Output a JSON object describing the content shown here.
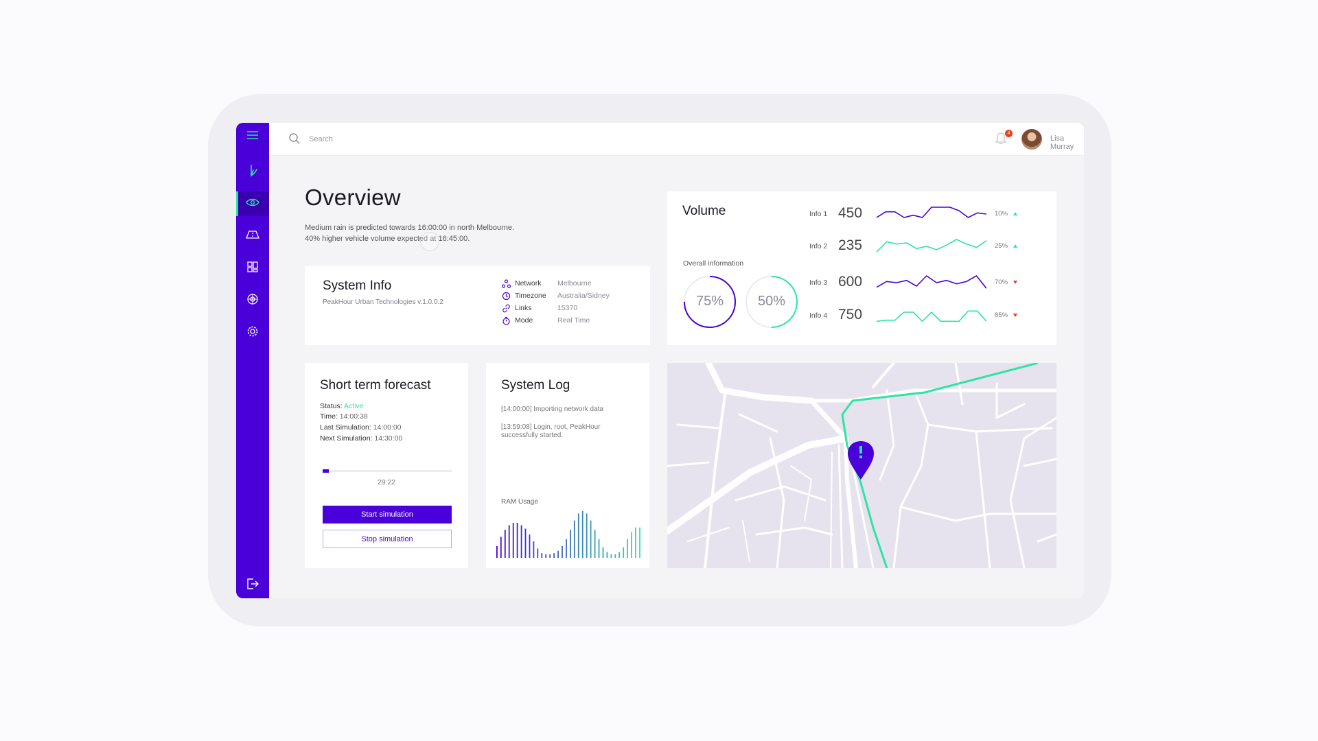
{
  "colors": {
    "brand": "#4a00d9",
    "accent": "#2de4a6",
    "down": "#e8401c",
    "background": "#f4f3f6"
  },
  "sidebar": {
    "items": [
      {
        "name": "menu",
        "icon": "menu-icon"
      },
      {
        "name": "logo",
        "icon": "logo-icon"
      },
      {
        "name": "overview",
        "icon": "eye-icon",
        "active": true
      },
      {
        "name": "roads",
        "icon": "road-icon"
      },
      {
        "name": "dashboard",
        "icon": "grid-icon"
      },
      {
        "name": "analytics",
        "icon": "target-icon"
      },
      {
        "name": "settings",
        "icon": "gear-icon"
      },
      {
        "name": "logout",
        "icon": "logout-icon"
      }
    ]
  },
  "topbar": {
    "search_placeholder": "Search",
    "notifications_count": "4",
    "user_name": "Lisa Murray"
  },
  "overview": {
    "title": "Overview",
    "message_line1": "Medium rain is predicted towards 16:00:00 in north Melbourne.",
    "message_line2": "40% higher vehicle volume expected at 16:45:00."
  },
  "system_info": {
    "title": "System Info",
    "subtitle": "PeakHour Urban Technologies v.1.0.0.2",
    "rows": [
      {
        "label": "Network",
        "value": "Melbourne",
        "icon": "network-icon"
      },
      {
        "label": "Timezone",
        "value": "Australia/Sidney",
        "icon": "clock-icon"
      },
      {
        "label": "Links",
        "value": "15370",
        "icon": "link-icon"
      },
      {
        "label": "Mode",
        "value": "Real Time",
        "icon": "stopwatch-icon"
      }
    ]
  },
  "volume": {
    "title": "Volume",
    "overall_label": "Overall information",
    "donuts": [
      {
        "label": "75%",
        "value": 0.75,
        "color": "#4a00d9"
      },
      {
        "label": "50%",
        "value": 0.5,
        "color": "#2de4a6"
      }
    ],
    "infos": [
      {
        "label": "Info 1",
        "value": "450",
        "pct": "10%",
        "trend": "up",
        "color": "#4a00d9",
        "spark": [
          3,
          8,
          8,
          3,
          5,
          3,
          12,
          12,
          12,
          9,
          3,
          7,
          6
        ]
      },
      {
        "label": "Info 2",
        "value": "235",
        "pct": "25%",
        "trend": "up",
        "color": "#2de4a6",
        "spark": [
          1,
          10,
          8,
          9,
          4,
          6,
          3,
          7,
          12,
          8,
          5,
          11
        ]
      },
      {
        "label": "Info 3",
        "value": "600",
        "pct": "70%",
        "trend": "down",
        "color": "#4a00d9",
        "spark": [
          2,
          7,
          6,
          8,
          3,
          12,
          6,
          8,
          5,
          7,
          12,
          1
        ]
      },
      {
        "label": "Info 4",
        "value": "750",
        "pct": "85%",
        "trend": "down",
        "color": "#2de4a6",
        "spark": [
          1,
          2,
          2,
          9,
          9,
          1,
          9,
          1,
          1,
          1,
          10,
          10,
          1
        ]
      }
    ]
  },
  "forecast": {
    "title": "Short term forecast",
    "status_label": "Status:",
    "status_value": "Active",
    "time_label": "Time:",
    "time_value": "14:00:38",
    "last_label": "Last Simulation:",
    "last_value": "14:00:00",
    "next_label": "Next Simulation:",
    "next_value": "14:30:00",
    "progress": 0.05,
    "progress_time": "29:22",
    "start_label": "Start simulation",
    "stop_label": "Stop simulation"
  },
  "system_log": {
    "title": "System Log",
    "entries": [
      "[14:00:00] Importing network data",
      "[13:59:08] Login, root, PeakHour successfully started."
    ],
    "ram_label": "RAM Usage",
    "ram_values": [
      10,
      18,
      24,
      28,
      30,
      30,
      28,
      25,
      20,
      14,
      8,
      4,
      3,
      3,
      4,
      6,
      10,
      16,
      24,
      32,
      38,
      40,
      38,
      32,
      24,
      16,
      9,
      5,
      3,
      3,
      5,
      9,
      16,
      22,
      26,
      26
    ]
  }
}
